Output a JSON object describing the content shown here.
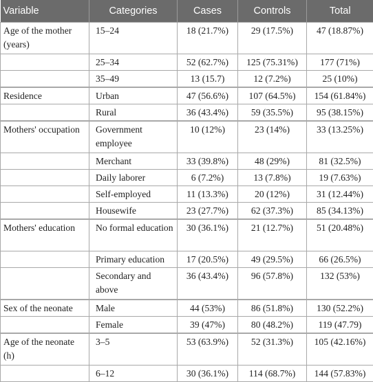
{
  "headers": [
    "Variable",
    "Categories",
    "Cases",
    "Controls",
    "Total"
  ],
  "rows": [
    {
      "variable": "Age of the mother (years)",
      "category": "15–24",
      "cases": "18 (21.7%)",
      "controls": "29 (17.5%)",
      "total": "47 (18.87%)"
    },
    {
      "variable": "",
      "category": "25–34",
      "cases": "52 (62.7%)",
      "controls": "125 (75.31%)",
      "total": "177 (71%)"
    },
    {
      "variable": "",
      "category": "35–49",
      "cases": "13 (15.7)",
      "controls": "12 (7.2%)",
      "total": "25 (10%)"
    },
    {
      "variable": "Residence",
      "category": "Urban",
      "cases": "47 (56.6%)",
      "controls": "107 (64.5%)",
      "total": "154 (61.84%)"
    },
    {
      "variable": "",
      "category": "Rural",
      "cases": "36 (43.4%)",
      "controls": "59 (35.5%)",
      "total": "95 (38.15%)"
    },
    {
      "variable": "Mothers' occupation",
      "category": "Government employee",
      "cases": "10 (12%)",
      "controls": "23 (14%)",
      "total": "33 (13.25%)"
    },
    {
      "variable": "",
      "category": "Merchant",
      "cases": "33 (39.8%)",
      "controls": "48 (29%)",
      "total": "81 (32.5%)"
    },
    {
      "variable": "",
      "category": "Daily laborer",
      "cases": "6 (7.2%)",
      "controls": "13 (7.8%)",
      "total": "19 (7.63%)"
    },
    {
      "variable": "",
      "category": "Self-employed",
      "cases": "11 (13.3%)",
      "controls": "20 (12%)",
      "total": "31 (12.44%)"
    },
    {
      "variable": "",
      "category": "Housewife",
      "cases": "23 (27.7%)",
      "controls": "62 (37.3%)",
      "total": "85 (34.13%)"
    },
    {
      "variable": "Mothers' education",
      "category": "No formal education",
      "cases": "30 (36.1%)",
      "controls": "21 (12.7%)",
      "total": "51 (20.48%)"
    },
    {
      "variable": "",
      "category": "Primary education",
      "cases": "17 (20.5%)",
      "controls": "49 (29.5%)",
      "total": "66 (26.5%)"
    },
    {
      "variable": "",
      "category": "Secondary and above",
      "cases": "36 (43.4%)",
      "controls": "96 (57.8%)",
      "total": "132 (53%)"
    },
    {
      "variable": "Sex of the neonate",
      "category": "Male",
      "cases": "44 (53%)",
      "controls": "86 (51.8%)",
      "total": "130 (52.2%)"
    },
    {
      "variable": "",
      "category": "Female",
      "cases": "39 (47%)",
      "controls": "80 (48.2%)",
      "total": "119 (47.79)"
    },
    {
      "variable": "Age of the neonate (h)",
      "category": "3–5",
      "cases": "53 (63.9%)",
      "controls": "52 (31.3%)",
      "total": "105 (42.16%)"
    },
    {
      "variable": "",
      "category": "6–12",
      "cases": "30 (36.1%)",
      "controls": "114 (68.7%)",
      "total": "144 (57.83%)"
    }
  ]
}
